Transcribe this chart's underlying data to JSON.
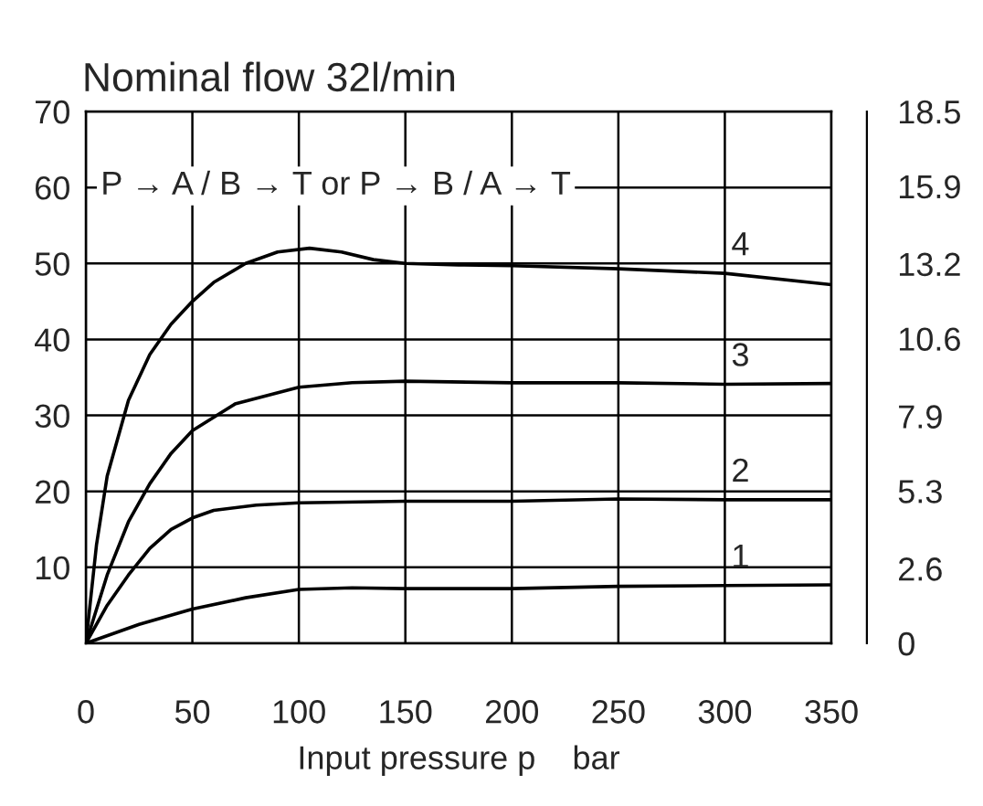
{
  "chart_data": {
    "type": "line",
    "title": "Nominal flow 32l/min",
    "xlabel": "Input pressure p    bar",
    "annotations": [
      "P → A / B → T or P → B / A → T"
    ],
    "xlim": [
      0,
      350
    ],
    "xticks": [
      0,
      50,
      100,
      150,
      200,
      250,
      300,
      350
    ],
    "ylim": [
      0,
      70
    ],
    "yticks": [
      {
        "value": 0,
        "label": null
      },
      10,
      20,
      30,
      40,
      50,
      60,
      70
    ],
    "y2lim": [
      0,
      18.5
    ],
    "y2ticks": [
      0,
      2.6,
      5.3,
      7.9,
      10.6,
      13.2,
      15.9,
      18.5
    ],
    "grid": true,
    "legend": false,
    "marker": "none",
    "line_style": "solid",
    "series": [
      {
        "name": "1",
        "color": "#000000",
        "x": [
          0,
          25,
          50,
          75,
          100,
          125,
          150,
          200,
          250,
          300,
          350
        ],
        "values": [
          0,
          2.5,
          4.5,
          6,
          7.1,
          7.3,
          7.2,
          7.2,
          7.5,
          7.6,
          7.7
        ]
      },
      {
        "name": "2",
        "color": "#000000",
        "x": [
          0,
          10,
          20,
          30,
          40,
          50,
          60,
          80,
          100,
          150,
          200,
          250,
          300,
          350
        ],
        "values": [
          0,
          5,
          9,
          12.5,
          15,
          16.5,
          17.5,
          18.2,
          18.5,
          18.7,
          18.7,
          19,
          18.9,
          18.9
        ]
      },
      {
        "name": "3",
        "color": "#000000",
        "x": [
          0,
          10,
          20,
          30,
          40,
          50,
          70,
          100,
          125,
          150,
          200,
          250,
          300,
          350
        ],
        "values": [
          0,
          9,
          16,
          21,
          25,
          28,
          31.5,
          33.7,
          34.3,
          34.5,
          34.3,
          34.3,
          34.1,
          34.2
        ]
      },
      {
        "name": "4",
        "color": "#000000",
        "x": [
          0,
          5,
          10,
          20,
          30,
          40,
          50,
          60,
          75,
          90,
          105,
          120,
          135,
          150,
          175,
          200,
          250,
          300,
          350
        ],
        "values": [
          0,
          13,
          22,
          32,
          38,
          42,
          45,
          47.5,
          50,
          51.5,
          52,
          51.5,
          50.5,
          50,
          49.8,
          49.7,
          49.3,
          48.7,
          47.2
        ]
      }
    ]
  }
}
